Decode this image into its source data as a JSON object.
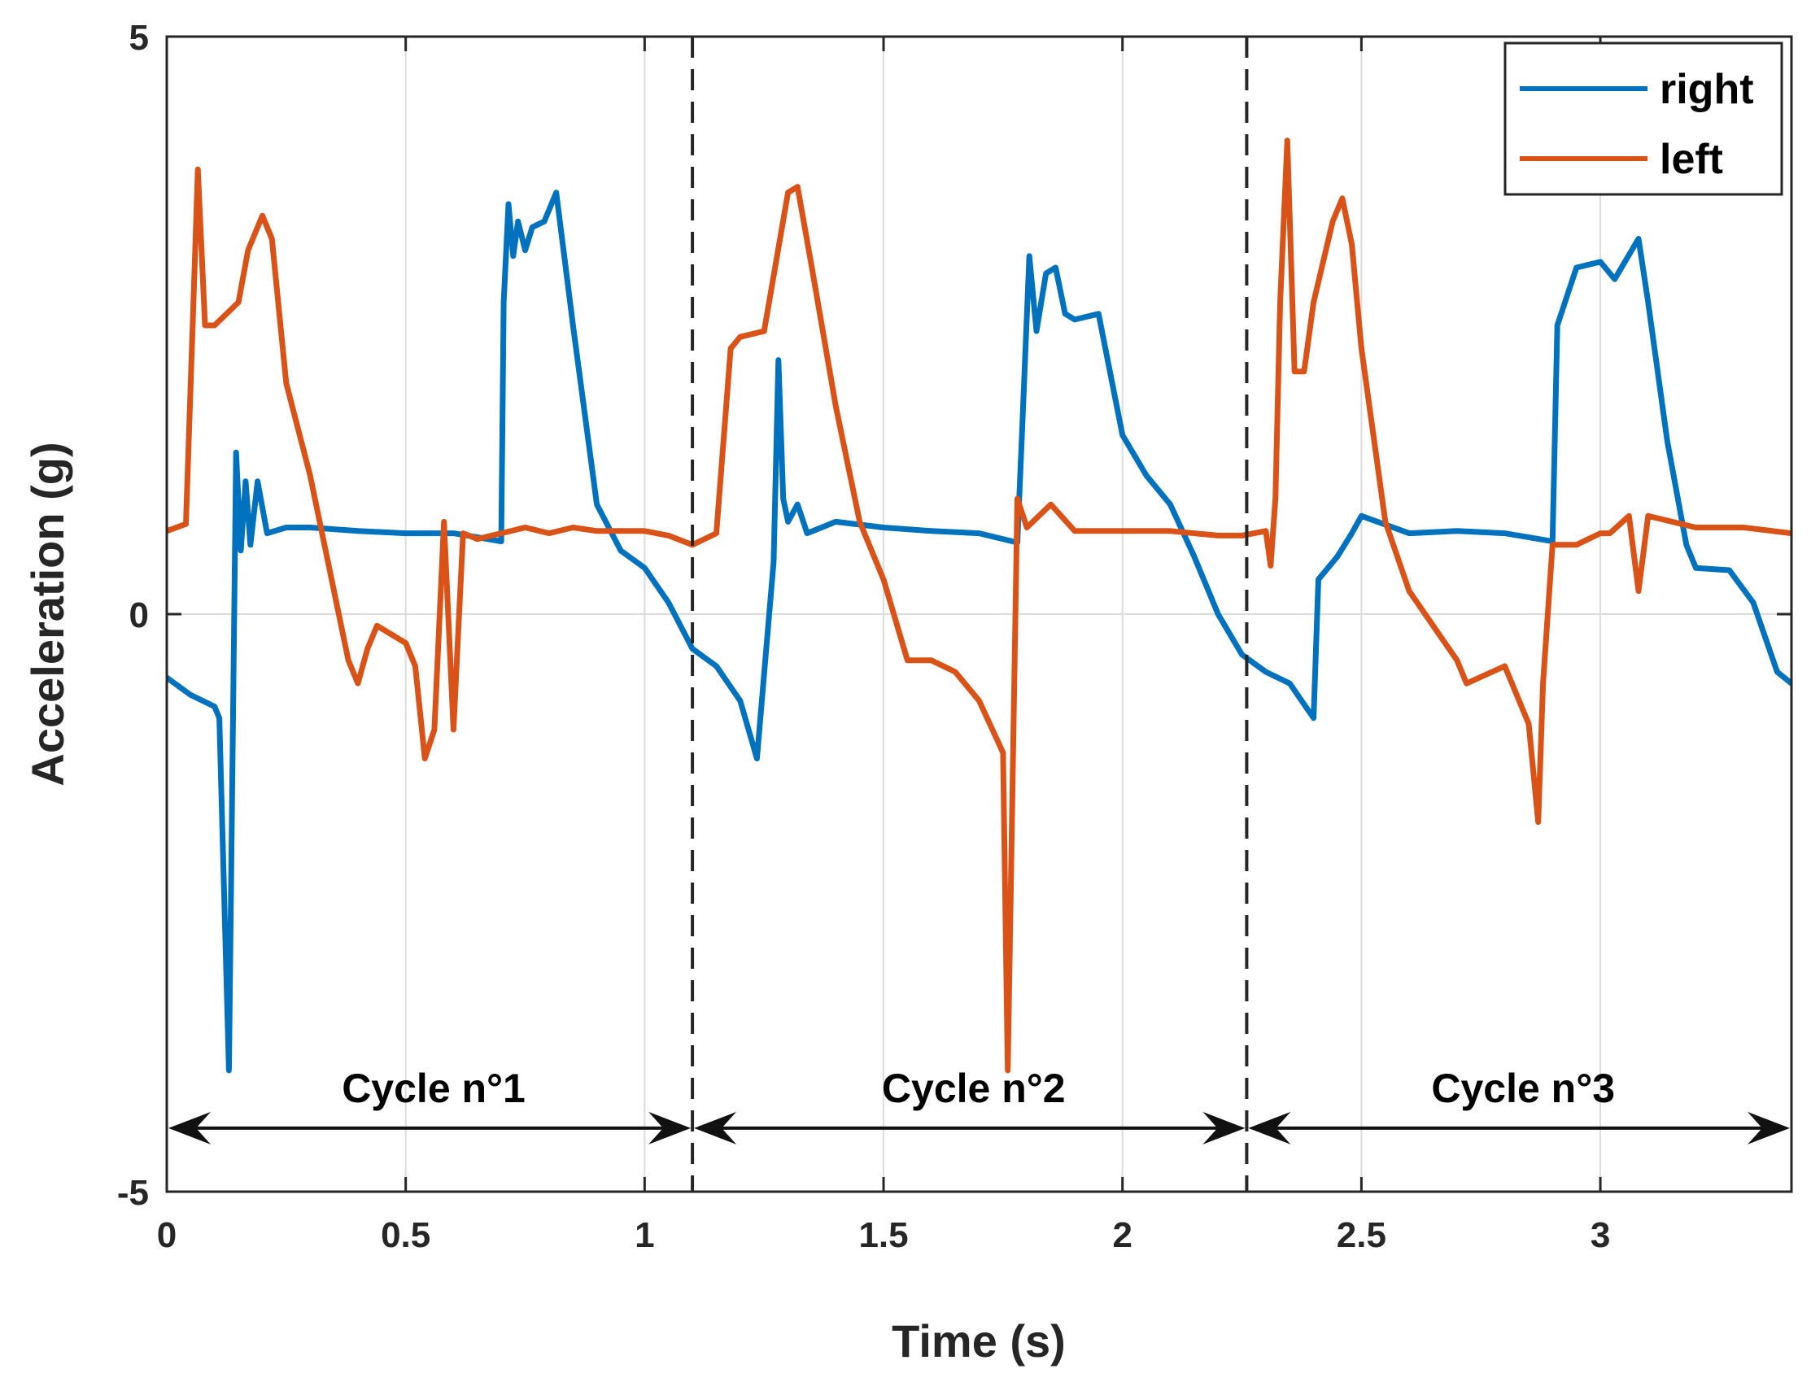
{
  "chart_data": {
    "type": "line",
    "title": "",
    "xlabel": "Time (s)",
    "ylabel": "Acceleration (g)",
    "xlim": [
      0,
      3.4
    ],
    "ylim": [
      -5,
      5
    ],
    "xticks": [
      0,
      0.5,
      1,
      1.5,
      2,
      2.5,
      3
    ],
    "xtick_labels": [
      "0",
      "0.5",
      "1",
      "1.5",
      "2",
      "2.5",
      "3"
    ],
    "yticks": [
      -5,
      0,
      5
    ],
    "ytick_labels": [
      "-5",
      "0",
      "5"
    ],
    "grid": true,
    "legend_position": "top-right",
    "series": [
      {
        "name": "right",
        "color": "#0072BD",
        "points": [
          [
            0,
            -0.55
          ],
          [
            0.05,
            -0.7
          ],
          [
            0.1,
            -0.8
          ],
          [
            0.11,
            -0.9
          ],
          [
            0.13,
            -3.95
          ],
          [
            0.145,
            1.4
          ],
          [
            0.155,
            0.55
          ],
          [
            0.165,
            1.15
          ],
          [
            0.175,
            0.6
          ],
          [
            0.19,
            1.15
          ],
          [
            0.21,
            0.7
          ],
          [
            0.25,
            0.75
          ],
          [
            0.3,
            0.75
          ],
          [
            0.4,
            0.72
          ],
          [
            0.5,
            0.7
          ],
          [
            0.6,
            0.7
          ],
          [
            0.7,
            0.63
          ],
          [
            0.705,
            2.7
          ],
          [
            0.715,
            3.55
          ],
          [
            0.725,
            3.1
          ],
          [
            0.735,
            3.4
          ],
          [
            0.75,
            3.15
          ],
          [
            0.765,
            3.35
          ],
          [
            0.79,
            3.4
          ],
          [
            0.815,
            3.65
          ],
          [
            0.85,
            2.5
          ],
          [
            0.9,
            0.95
          ],
          [
            0.95,
            0.55
          ],
          [
            1.0,
            0.4
          ],
          [
            1.05,
            0.1
          ],
          [
            1.1,
            -0.3
          ],
          [
            1.15,
            -0.45
          ],
          [
            1.2,
            -0.75
          ],
          [
            1.235,
            -1.25
          ],
          [
            1.27,
            0.45
          ],
          [
            1.28,
            2.2
          ],
          [
            1.29,
            1.0
          ],
          [
            1.3,
            0.8
          ],
          [
            1.32,
            0.95
          ],
          [
            1.34,
            0.7
          ],
          [
            1.4,
            0.8
          ],
          [
            1.5,
            0.75
          ],
          [
            1.6,
            0.72
          ],
          [
            1.7,
            0.7
          ],
          [
            1.78,
            0.62
          ],
          [
            1.79,
            1.6
          ],
          [
            1.805,
            3.1
          ],
          [
            1.82,
            2.45
          ],
          [
            1.84,
            2.95
          ],
          [
            1.86,
            3.0
          ],
          [
            1.88,
            2.6
          ],
          [
            1.9,
            2.55
          ],
          [
            1.95,
            2.6
          ],
          [
            2.0,
            1.55
          ],
          [
            2.05,
            1.2
          ],
          [
            2.1,
            0.95
          ],
          [
            2.15,
            0.5
          ],
          [
            2.2,
            0.0
          ],
          [
            2.25,
            -0.35
          ],
          [
            2.3,
            -0.5
          ],
          [
            2.35,
            -0.6
          ],
          [
            2.4,
            -0.9
          ],
          [
            2.41,
            0.3
          ],
          [
            2.45,
            0.5
          ],
          [
            2.48,
            0.7
          ],
          [
            2.5,
            0.85
          ],
          [
            2.6,
            0.7
          ],
          [
            2.7,
            0.72
          ],
          [
            2.8,
            0.7
          ],
          [
            2.9,
            0.63
          ],
          [
            2.91,
            2.5
          ],
          [
            2.95,
            3.0
          ],
          [
            3.0,
            3.05
          ],
          [
            3.03,
            2.9
          ],
          [
            3.08,
            3.25
          ],
          [
            3.1,
            2.7
          ],
          [
            3.14,
            1.5
          ],
          [
            3.18,
            0.6
          ],
          [
            3.2,
            0.4
          ],
          [
            3.27,
            0.38
          ],
          [
            3.32,
            0.1
          ],
          [
            3.37,
            -0.5
          ],
          [
            3.4,
            -0.6
          ]
        ]
      },
      {
        "name": "left",
        "color": "#D95319",
        "points": [
          [
            0,
            0.72
          ],
          [
            0.04,
            0.78
          ],
          [
            0.055,
            2.6
          ],
          [
            0.065,
            3.85
          ],
          [
            0.08,
            2.5
          ],
          [
            0.1,
            2.5
          ],
          [
            0.15,
            2.7
          ],
          [
            0.17,
            3.15
          ],
          [
            0.2,
            3.45
          ],
          [
            0.22,
            3.25
          ],
          [
            0.25,
            2.0
          ],
          [
            0.3,
            1.2
          ],
          [
            0.33,
            0.6
          ],
          [
            0.36,
            0.0
          ],
          [
            0.38,
            -0.4
          ],
          [
            0.4,
            -0.6
          ],
          [
            0.42,
            -0.3
          ],
          [
            0.44,
            -0.1
          ],
          [
            0.5,
            -0.25
          ],
          [
            0.52,
            -0.45
          ],
          [
            0.54,
            -1.25
          ],
          [
            0.56,
            -1.0
          ],
          [
            0.58,
            0.8
          ],
          [
            0.6,
            -1.0
          ],
          [
            0.62,
            0.7
          ],
          [
            0.65,
            0.65
          ],
          [
            0.7,
            0.7
          ],
          [
            0.75,
            0.75
          ],
          [
            0.8,
            0.7
          ],
          [
            0.85,
            0.75
          ],
          [
            0.9,
            0.72
          ],
          [
            1.0,
            0.72
          ],
          [
            1.05,
            0.68
          ],
          [
            1.1,
            0.6
          ],
          [
            1.15,
            0.7
          ],
          [
            1.18,
            2.3
          ],
          [
            1.2,
            2.4
          ],
          [
            1.25,
            2.45
          ],
          [
            1.3,
            3.65
          ],
          [
            1.32,
            3.7
          ],
          [
            1.35,
            3.0
          ],
          [
            1.4,
            1.8
          ],
          [
            1.45,
            0.8
          ],
          [
            1.5,
            0.3
          ],
          [
            1.55,
            -0.4
          ],
          [
            1.6,
            -0.4
          ],
          [
            1.65,
            -0.5
          ],
          [
            1.7,
            -0.75
          ],
          [
            1.75,
            -1.2
          ],
          [
            1.76,
            -3.95
          ],
          [
            1.78,
            1.0
          ],
          [
            1.8,
            0.75
          ],
          [
            1.85,
            0.95
          ],
          [
            1.9,
            0.72
          ],
          [
            2.0,
            0.72
          ],
          [
            2.1,
            0.72
          ],
          [
            2.2,
            0.68
          ],
          [
            2.25,
            0.68
          ],
          [
            2.3,
            0.72
          ],
          [
            2.31,
            0.42
          ],
          [
            2.32,
            1.0
          ],
          [
            2.33,
            2.7
          ],
          [
            2.345,
            4.1
          ],
          [
            2.36,
            2.1
          ],
          [
            2.38,
            2.1
          ],
          [
            2.4,
            2.7
          ],
          [
            2.44,
            3.4
          ],
          [
            2.46,
            3.6
          ],
          [
            2.48,
            3.2
          ],
          [
            2.5,
            2.3
          ],
          [
            2.55,
            0.8
          ],
          [
            2.6,
            0.2
          ],
          [
            2.65,
            -0.1
          ],
          [
            2.7,
            -0.4
          ],
          [
            2.72,
            -0.6
          ],
          [
            2.8,
            -0.45
          ],
          [
            2.85,
            -0.95
          ],
          [
            2.87,
            -1.8
          ],
          [
            2.88,
            -0.6
          ],
          [
            2.9,
            0.6
          ],
          [
            2.95,
            0.6
          ],
          [
            3.0,
            0.7
          ],
          [
            3.02,
            0.7
          ],
          [
            3.06,
            0.85
          ],
          [
            3.08,
            0.2
          ],
          [
            3.1,
            0.85
          ],
          [
            3.2,
            0.75
          ],
          [
            3.3,
            0.75
          ],
          [
            3.4,
            0.7
          ]
        ]
      }
    ],
    "cycle_boundaries": [
      1.1,
      2.26
    ],
    "cycles": [
      {
        "label": "Cycle n°1",
        "start": 0,
        "end": 1.1,
        "y": -4.45
      },
      {
        "label": "Cycle n°2",
        "start": 1.1,
        "end": 2.26,
        "y": -4.45
      },
      {
        "label": "Cycle n°3",
        "start": 2.26,
        "end": 3.4,
        "y": -4.45
      }
    ]
  }
}
